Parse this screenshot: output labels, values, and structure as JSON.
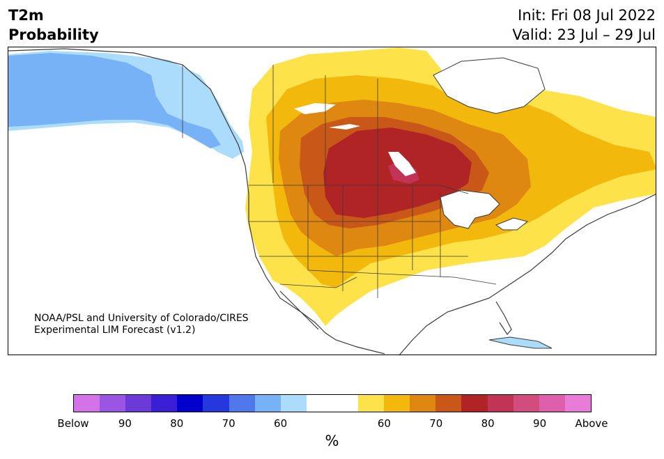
{
  "header": {
    "variable": "T2m",
    "quantity": "Probability",
    "init": "Init: Fri 08 Jul 2022",
    "valid": "Valid: 23 Jul – 29 Jul"
  },
  "credit": {
    "line1": "NOAA/PSL and University of Colorado/CIRES",
    "line2": "Experimental LIM Forecast (v1.2)"
  },
  "colorbar": {
    "unit": "%",
    "colors": [
      "#d473e8",
      "#9a55e2",
      "#6c3ad8",
      "#3a1fd6",
      "#0000cc",
      "#2538dd",
      "#4f78ea",
      "#76b2f5",
      "#acdcfb",
      "#ffffff",
      "#ffffff",
      "#fee24a",
      "#f2b80b",
      "#de8812",
      "#c95718",
      "#b12425",
      "#c23456",
      "#d14d7e",
      "#de60ad",
      "#e97bd9"
    ],
    "ticks": [
      "Below",
      "90",
      "80",
      "70",
      "60",
      "60",
      "70",
      "80",
      "90",
      "Above"
    ]
  },
  "map": {
    "region": "North America",
    "ocean_color": "#ffffff",
    "outline_color": "#3a3a3a"
  }
}
